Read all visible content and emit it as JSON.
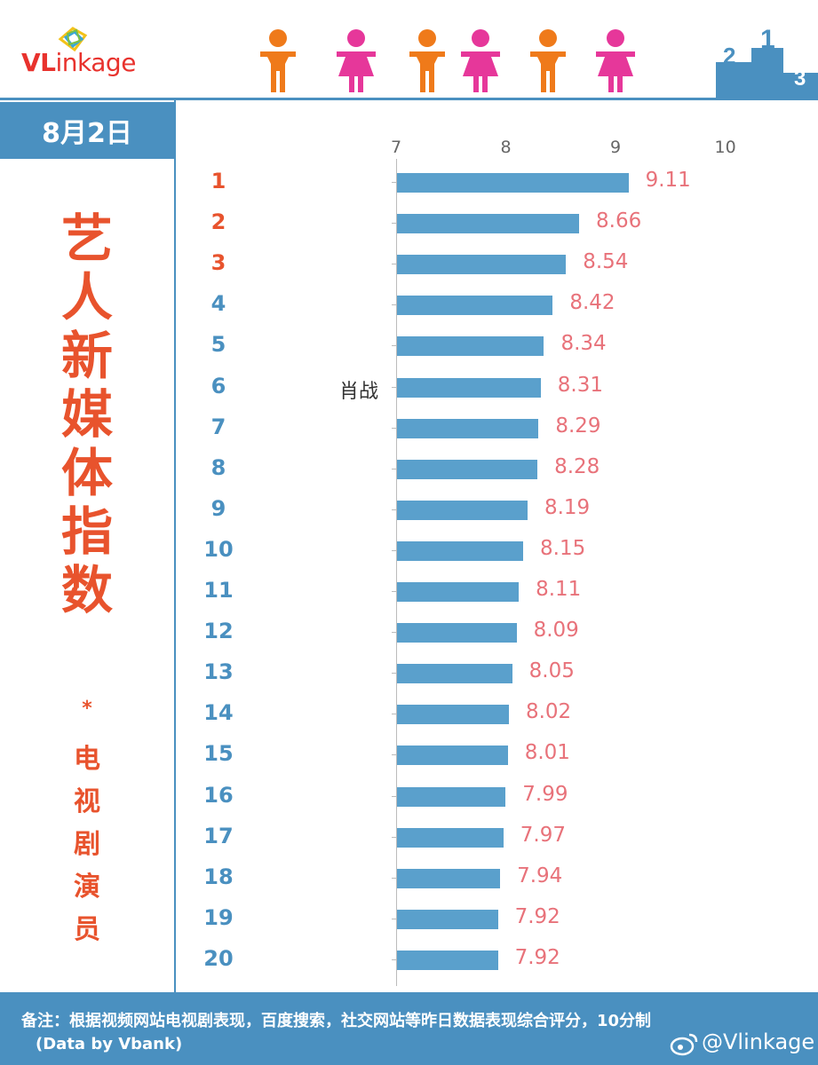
{
  "header": {
    "logo_text_red": "VL",
    "logo_text_rest": "inkage"
  },
  "date": "8月2日",
  "title_big": [
    "艺",
    "人",
    "新",
    "媒",
    "体",
    "指",
    "数"
  ],
  "title_star": "*",
  "title_small": [
    "电",
    "视",
    "剧",
    "演",
    "员"
  ],
  "footer": {
    "note": "备注：根据视频网站电视剧表现，百度搜索，社交网站等昨日数据表现综合评分，10分制",
    "source": "(Data by Vbank)",
    "handle": "@Vlinkage"
  },
  "colors": {
    "accent": "#4a90c0",
    "bar": "#5aa0cc",
    "title": "#e8532d",
    "rank_top": "#e8532d",
    "rank_rest": "#4a90c0",
    "value": "#e8727a"
  },
  "chart_data": {
    "type": "bar",
    "orientation": "horizontal",
    "xlim": [
      7,
      10
    ],
    "xticks": [
      "7",
      "8",
      "9",
      "10"
    ],
    "categories": [
      "1",
      "2",
      "3",
      "4",
      "5",
      "6",
      "7",
      "8",
      "9",
      "10",
      "11",
      "12",
      "13",
      "14",
      "15",
      "16",
      "17",
      "18",
      "19",
      "20"
    ],
    "names": [
      "",
      "",
      "",
      "",
      "",
      "肖战",
      "",
      "",
      "",
      "",
      "",
      "",
      "",
      "",
      "",
      "",
      "",
      "",
      "",
      ""
    ],
    "values": [
      9.11,
      8.66,
      8.54,
      8.42,
      8.34,
      8.31,
      8.29,
      8.28,
      8.19,
      8.15,
      8.11,
      8.09,
      8.05,
      8.02,
      8.01,
      7.99,
      7.97,
      7.94,
      7.92,
      7.92
    ],
    "value_labels": [
      "9.11",
      "8.66",
      "8.54",
      "8.42",
      "8.34",
      "8.31",
      "8.29",
      "8.28",
      "8.19",
      "8.15",
      "8.11",
      "8.09",
      "8.05",
      "8.02",
      "8.01",
      "7.99",
      "7.97",
      "7.94",
      "7.92",
      "7.92"
    ]
  }
}
